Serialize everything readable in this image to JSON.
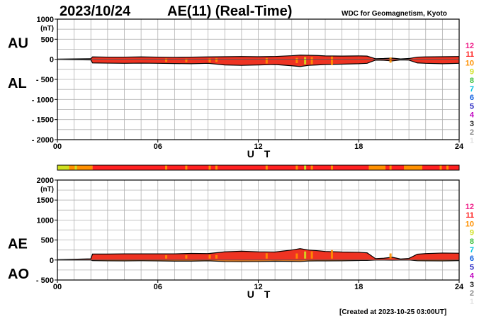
{
  "header": {
    "date": "2023/10/24",
    "title": "AE(11) (Real-Time)",
    "organization": "WDC for Geomagnetism, Kyoto"
  },
  "footer": {
    "created": "[Created at 2023-10-25 03:00UT]"
  },
  "colors": {
    "levels": [
      "#e5e5e5",
      "#888888",
      "#222222",
      "#c000c0",
      "#2020c0",
      "#1060e0",
      "#00c0e0",
      "#40c040",
      "#d0e020",
      "#ff9000",
      "#ff2020",
      "#f0208a"
    ],
    "main_fill": "#ee3322",
    "ao_fill": "#ee7711",
    "trace": "#000000",
    "grid": "#b0b0b0"
  },
  "chart_data": [
    {
      "type": "area",
      "panel": "AU/AL",
      "left_labels": [
        "AU",
        "AL"
      ],
      "ylabel": "(nT)",
      "xlabel": "U T",
      "ylim": [
        -2000,
        1000
      ],
      "yticks": [
        1000,
        500,
        0,
        -500,
        -1000,
        -1500,
        -2000
      ],
      "ytick_labels": [
        "1000",
        "500",
        "0",
        "- 500",
        "- 1000",
        "- 1500",
        "- 2000"
      ],
      "xlim": [
        0,
        24
      ],
      "xticks": [
        0,
        6,
        12,
        18,
        24
      ],
      "xtick_labels": [
        "00",
        "06",
        "12",
        "18",
        "24"
      ],
      "grid": true,
      "legend": [
        "12",
        "11",
        "10",
        "9",
        "8",
        "7",
        "6",
        "5",
        "4",
        "3",
        "2",
        "1"
      ],
      "legend_placement": "right",
      "series": [
        {
          "name": "AU",
          "x": [
            0,
            1,
            2,
            2.1,
            3,
            4,
            5,
            6,
            7,
            8,
            9,
            10,
            11,
            12,
            13,
            14,
            14.5,
            15,
            15.5,
            16,
            17,
            18,
            18.5,
            19,
            19.5,
            20,
            20.5,
            21,
            21.5,
            22,
            23,
            24
          ],
          "values": [
            5,
            10,
            15,
            60,
            55,
            55,
            60,
            55,
            50,
            55,
            60,
            65,
            70,
            65,
            70,
            90,
            105,
            100,
            95,
            85,
            80,
            85,
            80,
            15,
            20,
            30,
            10,
            20,
            55,
            60,
            65,
            70
          ]
        },
        {
          "name": "AL",
          "x": [
            0,
            1,
            2,
            2.1,
            3,
            4,
            5,
            6,
            7,
            8,
            9,
            10,
            11,
            12,
            13,
            14,
            14.5,
            15,
            15.5,
            16,
            17,
            18,
            18.5,
            19,
            19.5,
            20,
            20.5,
            21,
            21.5,
            22,
            23,
            24
          ],
          "values": [
            -5,
            -10,
            -15,
            -90,
            -95,
            -100,
            -95,
            -100,
            -105,
            -110,
            -100,
            -140,
            -150,
            -140,
            -130,
            -160,
            -180,
            -150,
            -140,
            -130,
            -120,
            -110,
            -100,
            -20,
            -25,
            -40,
            -15,
            -20,
            -90,
            -100,
            -110,
            -100
          ]
        }
      ]
    },
    {
      "type": "area",
      "panel": "AE/AO",
      "left_labels": [
        "AE",
        "AO"
      ],
      "ylabel": "(nT)",
      "xlabel": "U T",
      "ylim": [
        -500,
        2000
      ],
      "yticks": [
        2000,
        1500,
        1000,
        500,
        0,
        -500
      ],
      "ytick_labels": [
        "2000",
        "1500",
        "1000",
        "500",
        "0",
        "- 500"
      ],
      "xlim": [
        0,
        24
      ],
      "xticks": [
        0,
        6,
        12,
        18,
        24
      ],
      "xtick_labels": [
        "00",
        "06",
        "12",
        "18",
        "24"
      ],
      "grid": true,
      "legend": [
        "12",
        "11",
        "10",
        "9",
        "8",
        "7",
        "6",
        "5",
        "4",
        "3",
        "2",
        "1"
      ],
      "legend_placement": "right",
      "series": [
        {
          "name": "AE",
          "x": [
            0,
            1,
            2,
            2.1,
            3,
            4,
            5,
            6,
            7,
            8,
            9,
            10,
            11,
            12,
            13,
            14,
            14.5,
            15,
            15.5,
            16,
            17,
            18,
            18.5,
            19,
            19.5,
            20,
            20.5,
            21,
            21.5,
            22,
            23,
            24
          ],
          "values": [
            10,
            20,
            30,
            150,
            150,
            155,
            155,
            155,
            155,
            165,
            160,
            205,
            220,
            205,
            200,
            250,
            285,
            250,
            235,
            215,
            200,
            195,
            180,
            35,
            45,
            70,
            25,
            40,
            145,
            160,
            175,
            170
          ]
        },
        {
          "name": "AO",
          "x": [
            0,
            1,
            2,
            2.1,
            3,
            4,
            5,
            6,
            7,
            8,
            9,
            10,
            11,
            12,
            13,
            14,
            14.5,
            15,
            15.5,
            16,
            17,
            18,
            18.5,
            19,
            19.5,
            20,
            20.5,
            21,
            21.5,
            22,
            23,
            24
          ],
          "values": [
            0,
            0,
            0,
            -15,
            -20,
            -22,
            -18,
            -22,
            -28,
            -28,
            -20,
            -38,
            -40,
            -38,
            -30,
            -35,
            -38,
            -25,
            -22,
            -22,
            -20,
            -12,
            -10,
            -2,
            -2,
            -5,
            -2,
            0,
            -18,
            -20,
            -22,
            -15
          ]
        }
      ]
    }
  ],
  "level_bar": {
    "segments": [
      {
        "from": 0,
        "to": 0.7,
        "level": 9
      },
      {
        "from": 0.7,
        "to": 2.1,
        "level": 10
      },
      {
        "from": 2.1,
        "to": 24,
        "level": 11
      }
    ],
    "highlights": [
      {
        "at": 0.3,
        "level": 9
      },
      {
        "at": 1.1,
        "level": 9
      },
      {
        "at": 6.5,
        "level": 10
      },
      {
        "at": 7.7,
        "level": 10
      },
      {
        "at": 9.1,
        "level": 10
      },
      {
        "at": 9.5,
        "level": 10
      },
      {
        "at": 12.5,
        "level": 10
      },
      {
        "at": 14.3,
        "level": 10
      },
      {
        "at": 14.8,
        "level": 9
      },
      {
        "at": 15.2,
        "level": 10
      },
      {
        "at": 16.4,
        "level": 10
      },
      {
        "at": 19.9,
        "level": 10
      },
      {
        "at": 22.9,
        "level": 10
      },
      {
        "at": 23.3,
        "level": 10
      }
    ],
    "blocks": [
      {
        "from": 18.6,
        "to": 19.6,
        "level": 10
      },
      {
        "from": 20.7,
        "to": 21.8,
        "level": 10
      }
    ]
  }
}
